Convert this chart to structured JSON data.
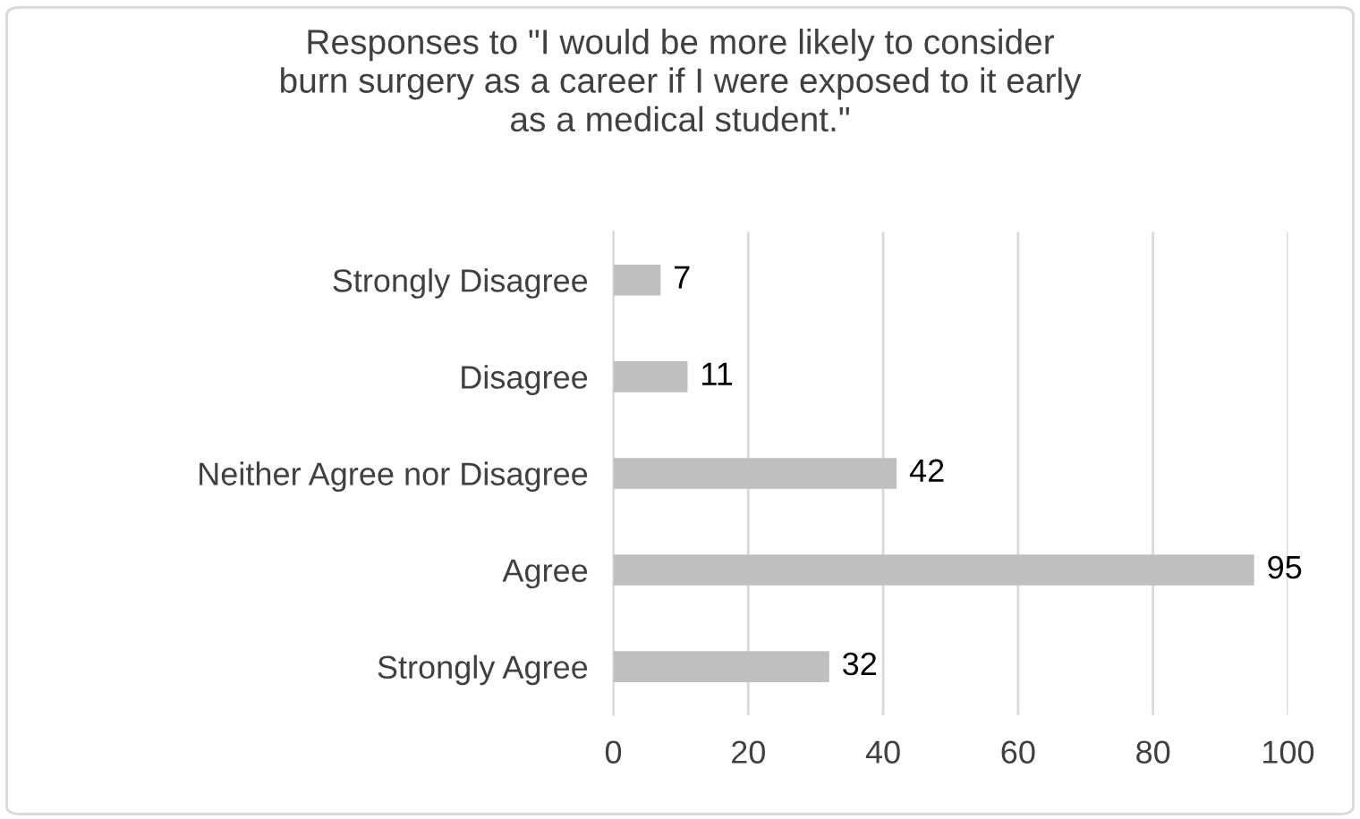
{
  "chart_data": {
    "type": "bar",
    "orientation": "horizontal",
    "title": "Responses to \"I would be more likely to consider\nburn surgery as a career if I were exposed to it early\nas a medical student.\"",
    "categories": [
      "Strongly Disagree",
      "Disagree",
      "Neither Agree nor Disagree",
      "Agree",
      "Strongly Agree"
    ],
    "values": [
      7,
      11,
      42,
      95,
      32
    ],
    "color": "#bfbfbf",
    "data_labels": true,
    "xlim": [
      0,
      100
    ],
    "xticks": [
      0,
      20,
      40,
      60,
      80,
      100
    ],
    "grid": "x",
    "legend": false
  }
}
